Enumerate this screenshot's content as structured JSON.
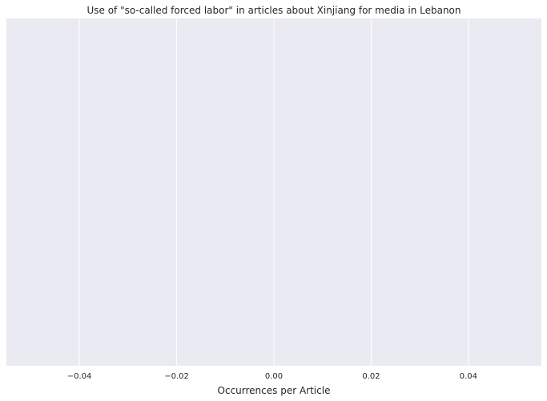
{
  "chart_data": {
    "type": "bar",
    "orientation": "horizontal",
    "title": "Use of \"so-called forced labor\" in articles about Xinjiang for media in Lebanon",
    "xlabel": "Occurrences per Article",
    "ylabel": "",
    "categories": [],
    "values": [],
    "xlim": [
      -0.055,
      0.055
    ],
    "xticks": [
      -0.04,
      -0.02,
      0.0,
      0.02,
      0.04
    ],
    "xtick_labels": [
      "−0.04",
      "−0.02",
      "0.00",
      "0.02",
      "0.04"
    ],
    "grid": true,
    "legend": "none",
    "colors": {
      "plot_background": "#eaeaf2",
      "grid": "#ffffff",
      "text": "#262626"
    }
  }
}
